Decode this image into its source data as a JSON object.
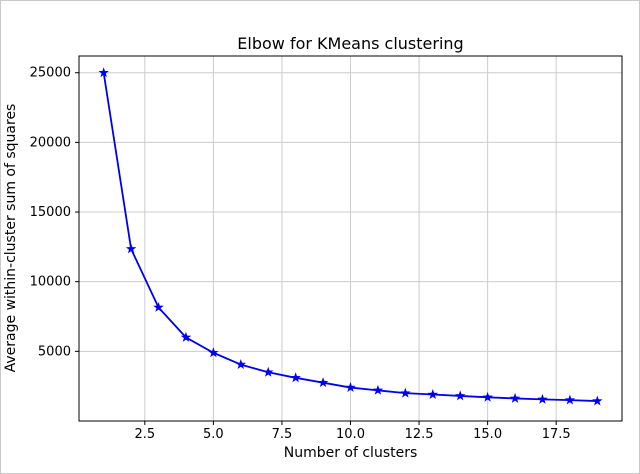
{
  "figure": {
    "background_color": "#ffffff",
    "border_color": "#c9c9c9"
  },
  "chart_data": {
    "type": "line",
    "title": "Elbow for KMeans clustering",
    "xlabel": "Number of clusters",
    "ylabel": "Average within-cluster sum of squares",
    "x": [
      1,
      2,
      3,
      4,
      5,
      6,
      7,
      8,
      9,
      10,
      11,
      12,
      13,
      14,
      15,
      16,
      17,
      18,
      19
    ],
    "y": [
      25000,
      12350,
      8150,
      6000,
      4900,
      4050,
      3500,
      3100,
      2750,
      2400,
      2200,
      2000,
      1900,
      1800,
      1700,
      1620,
      1550,
      1500,
      1430
    ],
    "xlim": [
      0.1,
      19.9
    ],
    "ylim": [
      0,
      26200
    ],
    "xticks": {
      "values": [
        2.5,
        5.0,
        7.5,
        10.0,
        12.5,
        15.0,
        17.5
      ],
      "labels": [
        "2.5",
        "5.0",
        "7.5",
        "10.0",
        "12.5",
        "15.0",
        "17.5"
      ]
    },
    "yticks": {
      "values": [
        5000,
        10000,
        15000,
        20000,
        25000
      ],
      "labels": [
        "5000",
        "10000",
        "15000",
        "20000",
        "25000"
      ]
    },
    "grid": true,
    "grid_color": "#cccccc",
    "line_color": "#0000ee",
    "marker": "star",
    "marker_color": "#0000ee",
    "axes_edge_color": "#000000",
    "legend": null
  }
}
